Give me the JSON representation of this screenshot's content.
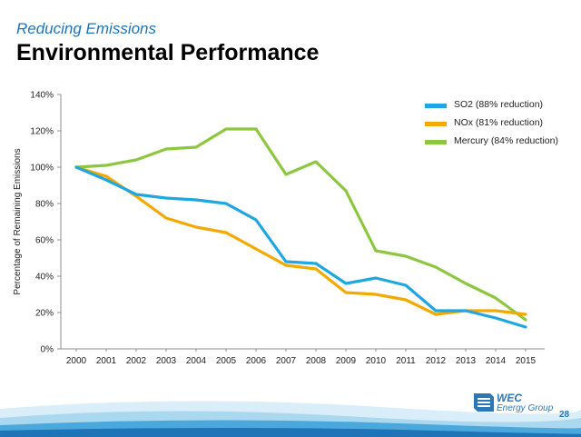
{
  "header": {
    "subtitle": "Reducing Emissions",
    "title": "Environmental Performance"
  },
  "footer": {
    "logo_line1": "WEC",
    "logo_line2": "Energy Group",
    "page_number": "28"
  },
  "colors": {
    "so2": "#1ea7e1",
    "nox": "#f2a900",
    "mercury": "#8dc63f",
    "title_blue": "#1f73b7"
  },
  "chart_data": {
    "type": "line",
    "ylabel": "Percentage of Remaining Emissions",
    "xlabel": "",
    "ylim": [
      0,
      140
    ],
    "y_ticks": [
      "0%",
      "20%",
      "40%",
      "60%",
      "80%",
      "100%",
      "120%",
      "140%"
    ],
    "x": [
      "2000",
      "2001",
      "2002",
      "2003",
      "2004",
      "2005",
      "2006",
      "2007",
      "2008",
      "2009",
      "2010",
      "2011",
      "2012",
      "2013",
      "2014",
      "2015"
    ],
    "grid": false,
    "legend_position": "top-right",
    "series": [
      {
        "name": "SO2 (88% reduction)",
        "color_key": "so2",
        "values": [
          100,
          93,
          85,
          83,
          82,
          80,
          71,
          48,
          47,
          36,
          39,
          35,
          21,
          21,
          17,
          12
        ]
      },
      {
        "name": "NOx (81% reduction)",
        "color_key": "nox",
        "values": [
          100,
          95,
          84,
          72,
          67,
          64,
          55,
          46,
          44,
          31,
          30,
          27,
          19,
          21,
          21,
          19
        ]
      },
      {
        "name": "Mercury (84% reduction)",
        "color_key": "mercury",
        "values": [
          100,
          101,
          104,
          110,
          111,
          121,
          121,
          96,
          103,
          87,
          54,
          51,
          45,
          36,
          28,
          16
        ]
      }
    ]
  }
}
